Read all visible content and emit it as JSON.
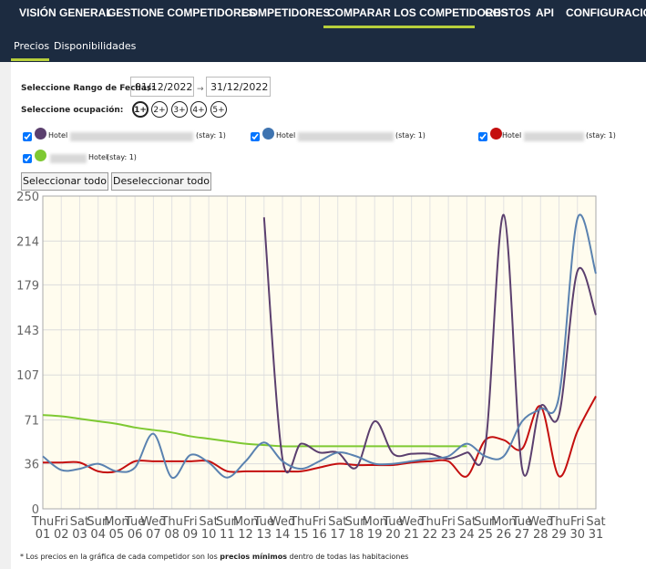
{
  "nav": {
    "items": [
      "VISIÓN GENERAL",
      "GESTIONE COMPETIDORES",
      "COMPETIDORES",
      "COMPARAR LOS COMPETIDORES",
      "COSTOS",
      "API",
      "CONFIGURACIÓN"
    ]
  },
  "subnav": {
    "items": [
      "Precios",
      "Disponibilidades"
    ]
  },
  "filters": {
    "date_label": "Seleccione Rango de Fechas:",
    "date_from": "01/12/2022",
    "arrow": "→",
    "date_to": "31/12/2022",
    "occupancy_label": "Seleccione ocupación:",
    "occupancy": [
      "1+",
      "2+",
      "3+",
      "4+",
      "5+"
    ]
  },
  "hotels": [
    {
      "label": "Hotel",
      "stay": "(stay: 1)",
      "color": "#5b3f6e"
    },
    {
      "label": "Hotel",
      "stay": "(stay: 1)",
      "color": "#3f74b0"
    },
    {
      "label": "Hotel",
      "stay": "(stay: 1)",
      "color": "#c40f0f"
    },
    {
      "label": "Hotel",
      "stay": "(stay: 1)",
      "color": "#7ec932"
    }
  ],
  "buttons": [
    "Seleccionar todo",
    "Deseleccionar todo"
  ],
  "chart_data": {
    "type": "line",
    "categories": [
      {
        "weekday": "Thu",
        "day": "01"
      },
      {
        "weekday": "Fri",
        "day": "02"
      },
      {
        "weekday": "Sat",
        "day": "03"
      },
      {
        "weekday": "Sun",
        "day": "04"
      },
      {
        "weekday": "Mon",
        "day": "05"
      },
      {
        "weekday": "Tue",
        "day": "06"
      },
      {
        "weekday": "Wed",
        "day": "07"
      },
      {
        "weekday": "Thu",
        "day": "08"
      },
      {
        "weekday": "Fri",
        "day": "09"
      },
      {
        "weekday": "Sat",
        "day": "10"
      },
      {
        "weekday": "Sun",
        "day": "11"
      },
      {
        "weekday": "Mon",
        "day": "12"
      },
      {
        "weekday": "Tue",
        "day": "13"
      },
      {
        "weekday": "Wed",
        "day": "14"
      },
      {
        "weekday": "Thu",
        "day": "15"
      },
      {
        "weekday": "Fri",
        "day": "16"
      },
      {
        "weekday": "Sat",
        "day": "17"
      },
      {
        "weekday": "Sun",
        "day": "18"
      },
      {
        "weekday": "Mon",
        "day": "19"
      },
      {
        "weekday": "Tue",
        "day": "20"
      },
      {
        "weekday": "Wed",
        "day": "21"
      },
      {
        "weekday": "Thu",
        "day": "22"
      },
      {
        "weekday": "Fri",
        "day": "23"
      },
      {
        "weekday": "Sat",
        "day": "24"
      },
      {
        "weekday": "Sun",
        "day": "25"
      },
      {
        "weekday": "Mon",
        "day": "26"
      },
      {
        "weekday": "Tue",
        "day": "27"
      },
      {
        "weekday": "Wed",
        "day": "28"
      },
      {
        "weekday": "Thu",
        "day": "29"
      },
      {
        "weekday": "Fri",
        "day": "30"
      },
      {
        "weekday": "Sat",
        "day": "31"
      }
    ],
    "series": [
      {
        "color": "#7ec932",
        "values": [
          75,
          74,
          72,
          70,
          68,
          65,
          63,
          61,
          58,
          56,
          54,
          52,
          51,
          50,
          50,
          50,
          50,
          50,
          50,
          50,
          50,
          50,
          50,
          50,
          null,
          null,
          null,
          null,
          null,
          null,
          null
        ]
      },
      {
        "color": "#c40f0f",
        "values": [
          37,
          37,
          37,
          30,
          30,
          38,
          38,
          38,
          38,
          38,
          30,
          30,
          30,
          30,
          30,
          33,
          36,
          35,
          35,
          35,
          37,
          38,
          38,
          26,
          55,
          55,
          48,
          82,
          26,
          62,
          90
        ]
      },
      {
        "color": "#5b3f6e",
        "values": [
          null,
          null,
          null,
          null,
          null,
          null,
          null,
          null,
          null,
          null,
          null,
          null,
          233,
          40,
          52,
          45,
          45,
          33,
          70,
          44,
          44,
          44,
          40,
          45,
          50,
          235,
          32,
          82,
          75,
          190,
          155
        ]
      },
      {
        "color": "#5a82b0",
        "values": [
          42,
          31,
          32,
          36,
          30,
          33,
          60,
          25,
          43,
          37,
          25,
          38,
          53,
          38,
          32,
          38,
          45,
          42,
          36,
          36,
          38,
          40,
          42,
          52,
          42,
          42,
          70,
          80,
          90,
          232,
          188
        ]
      }
    ],
    "ylim": [
      0,
      250
    ],
    "yticks": [
      0,
      36,
      71,
      107,
      143,
      179,
      214,
      250
    ],
    "grid": true
  },
  "footnote": {
    "before": "* Los precios en la gráfica de cada competidor son los ",
    "bold": "precios mínimos",
    "after": " dentro de todas las habitaciones"
  }
}
